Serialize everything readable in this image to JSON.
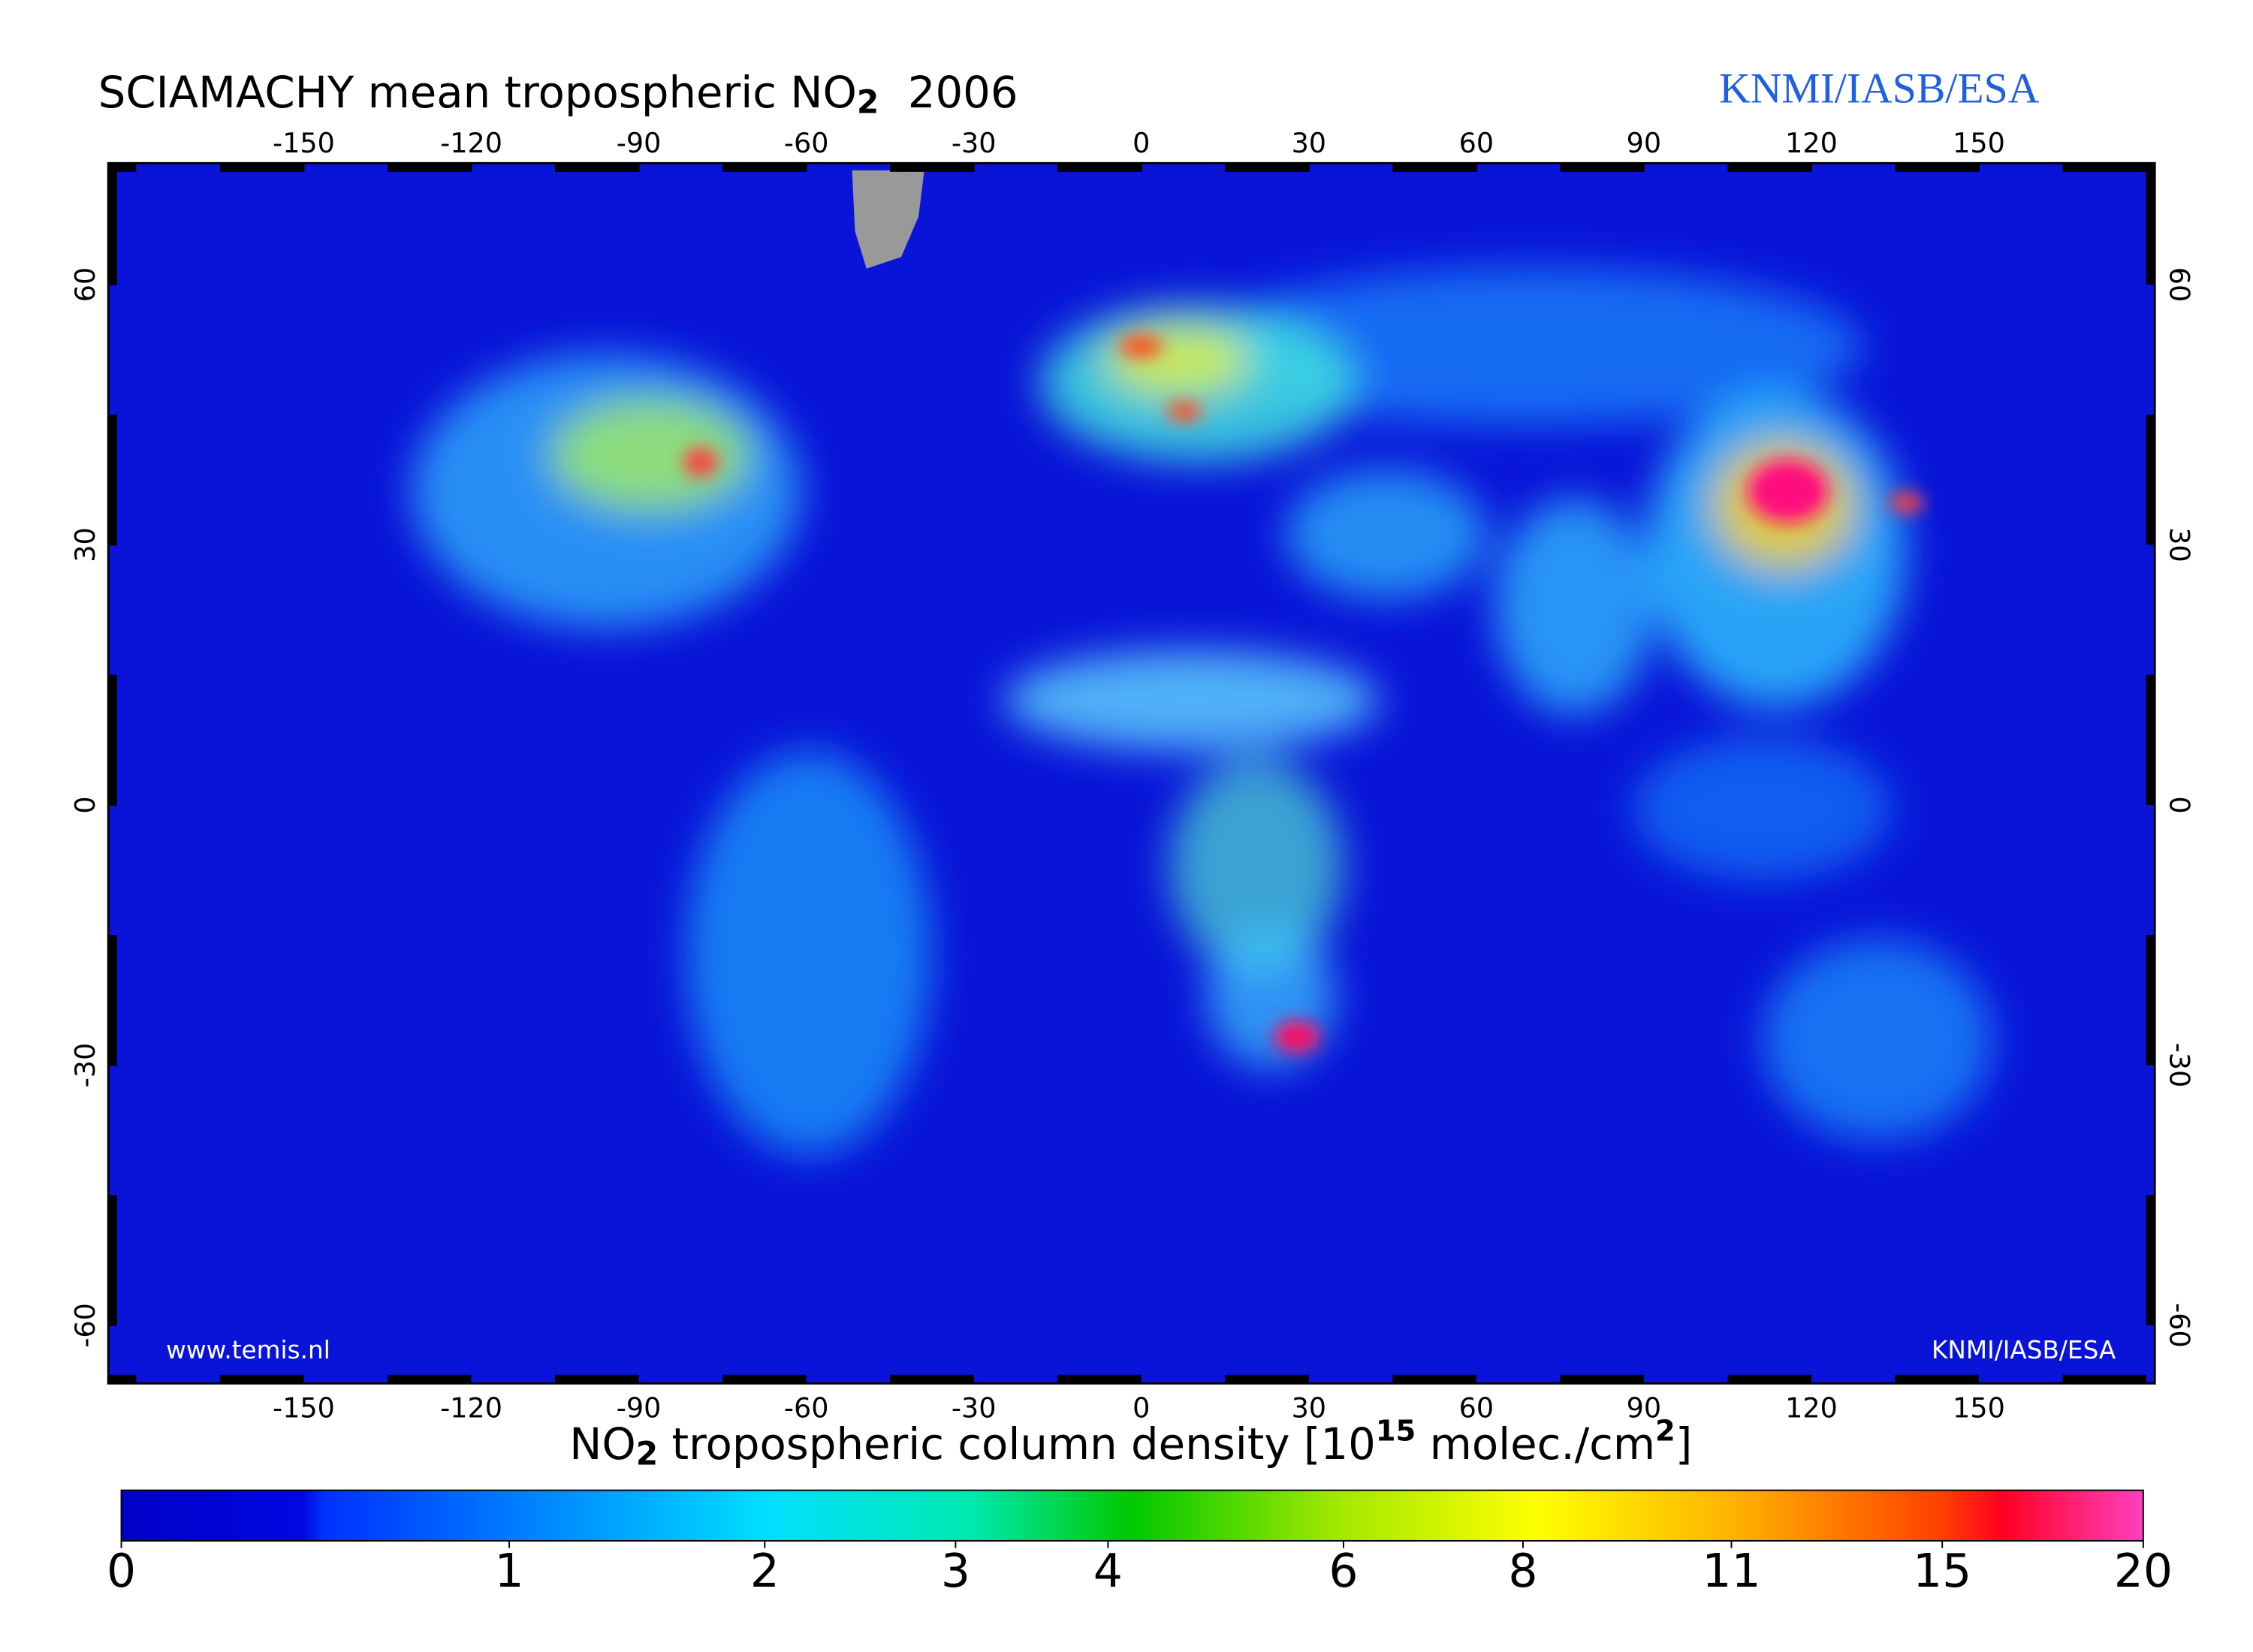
{
  "header": {
    "title": "SCIAMACHY mean tropospheric NO",
    "title_subscript": "2",
    "year": "2006",
    "credit": "KNMI/IASB/ESA"
  },
  "map": {
    "xlim": [
      -185,
      181.5
    ],
    "ylim": [
      -66.7,
      74
    ],
    "lon_ticks": [
      -150,
      -120,
      -90,
      -60,
      -30,
      0,
      30,
      60,
      90,
      120,
      150
    ],
    "lat_ticks": [
      60,
      30,
      0,
      -30,
      -60
    ],
    "website": "www.temis.nl",
    "inner_credit": "KNMI/IASB/ESA"
  },
  "colorbar": {
    "label_parts": [
      "NO",
      "2",
      " tropospheric column density [10",
      "15",
      " molec./cm",
      "2",
      "]"
    ],
    "range": [
      0,
      20
    ],
    "ticks": [
      0,
      1,
      2,
      3,
      4,
      6,
      8,
      11,
      15,
      20
    ]
  }
}
